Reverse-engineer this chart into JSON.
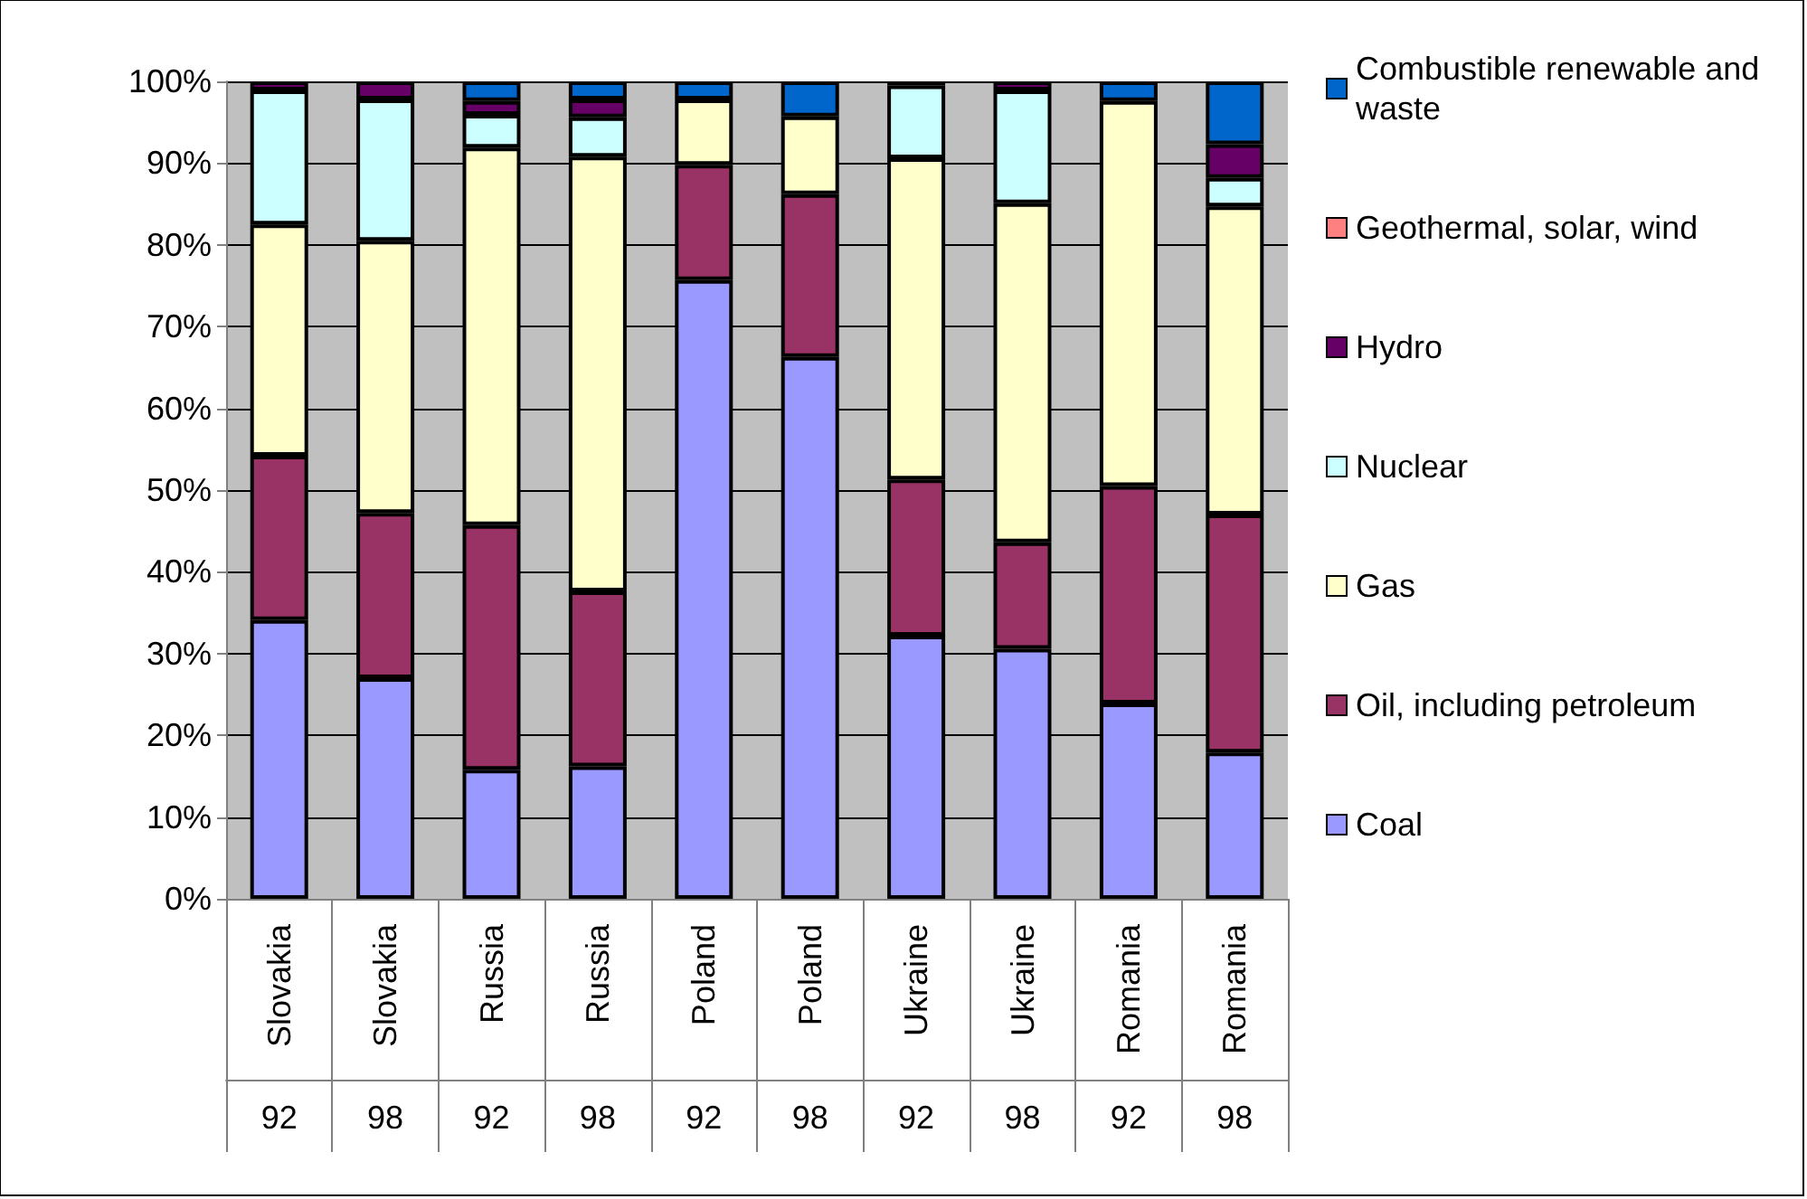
{
  "chart_data": {
    "type": "bar",
    "stacked": true,
    "categories": [
      "Slovakia",
      "Slovakia",
      "Russia",
      "Russia",
      "Poland",
      "Poland",
      "Ukraine",
      "Ukraine",
      "Romania",
      "Romania"
    ],
    "annotations": [
      "92",
      "98",
      "92",
      "98",
      "92",
      "98",
      "92",
      "98",
      "92",
      "98"
    ],
    "series": [
      {
        "name": "Coal",
        "color": "#9999ff",
        "values": [
          34.1,
          27.0,
          15.8,
          16.2,
          75.7,
          66.3,
          32.2,
          30.6,
          23.9,
          17.9
        ]
      },
      {
        "name": "Oil, including petroleum",
        "color": "#993366",
        "values": [
          20.1,
          20.2,
          29.9,
          21.4,
          14.1,
          19.9,
          19.1,
          13.0,
          26.6,
          29.1
        ]
      },
      {
        "name": "Gas",
        "color": "#ffffcc",
        "values": [
          28.3,
          33.3,
          46.2,
          53.2,
          8.0,
          9.5,
          39.3,
          41.5,
          47.1,
          37.7
        ]
      },
      {
        "name": "Nuclear",
        "color": "#ccffff",
        "values": [
          16.4,
          17.3,
          4.0,
          4.8,
          0,
          0,
          8.9,
          13.8,
          0,
          3.5
        ]
      },
      {
        "name": "Hydro",
        "color": "#660066",
        "values": [
          1.1,
          2.2,
          1.7,
          2.2,
          0,
          0,
          0.5,
          1.1,
          0,
          4.1
        ]
      },
      {
        "name": "Geothermal, solar, wind",
        "color": "#ff8080",
        "values": [
          0,
          0,
          0,
          0,
          0,
          0,
          0,
          0,
          0,
          0
        ]
      },
      {
        "name": "Combustible renewable and waste",
        "color": "#0066cc",
        "values": [
          0,
          0,
          2.4,
          2.2,
          2.2,
          4.3,
          0,
          0,
          2.4,
          7.7
        ]
      }
    ],
    "ylim": [
      0,
      100
    ],
    "yticks": [
      {
        "value": 0,
        "label": "0%"
      },
      {
        "value": 10,
        "label": "10%"
      },
      {
        "value": 20,
        "label": "20%"
      },
      {
        "value": 30,
        "label": "30%"
      },
      {
        "value": 40,
        "label": "40%"
      },
      {
        "value": 50,
        "label": "50%"
      },
      {
        "value": 60,
        "label": "60%"
      },
      {
        "value": 70,
        "label": "70%"
      },
      {
        "value": 80,
        "label": "80%"
      },
      {
        "value": 90,
        "label": "90%"
      },
      {
        "value": 100,
        "label": "100%"
      }
    ],
    "grid": "y",
    "legend": "right"
  }
}
